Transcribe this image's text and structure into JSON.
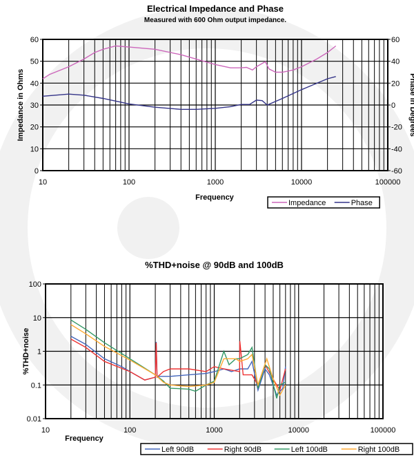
{
  "chart_data": [
    {
      "type": "line",
      "title": "Electrical Impedance and Phase",
      "subtitle": "Measured with 600 Ohm output impedance.",
      "xlabel": "Frequency",
      "ylabel": "Impedance in Ohms",
      "y2label": "Phase in Degrees",
      "xscale": "log",
      "xlim": [
        10,
        100000
      ],
      "ylim": [
        0,
        60
      ],
      "y2lim": [
        -60,
        60
      ],
      "xticks": [
        "10",
        "100",
        "1000",
        "10000",
        "100000"
      ],
      "yticks": [
        "0",
        "10",
        "20",
        "30",
        "40",
        "50",
        "60"
      ],
      "y2ticks": [
        "-60",
        "-40",
        "-20",
        "0",
        "20",
        "40",
        "60"
      ],
      "grid": true,
      "legend": "bottom-right",
      "series": [
        {
          "name": "Impedance",
          "axis": "left",
          "color": "#cc66bb",
          "x": [
            10,
            12,
            20,
            30,
            40,
            50,
            70,
            100,
            200,
            400,
            1000,
            1500,
            2000,
            2300,
            2700,
            3000,
            3800,
            4200,
            5000,
            6000,
            8000,
            10000,
            15000,
            20000,
            25000
          ],
          "y": [
            42,
            44,
            47.5,
            51,
            54,
            55.5,
            57,
            56.5,
            55.5,
            53,
            48.5,
            47,
            47,
            47.2,
            46,
            47.5,
            49.8,
            46.5,
            45,
            45,
            46,
            47.5,
            51,
            54,
            57
          ]
        },
        {
          "name": "Phase",
          "axis": "right",
          "color": "#333388",
          "x": [
            10,
            20,
            30,
            50,
            100,
            200,
            400,
            600,
            1000,
            1500,
            2000,
            2500,
            3000,
            3500,
            4000,
            6000,
            10000,
            20000,
            25000
          ],
          "y": [
            8,
            10,
            9,
            6,
            1,
            -2,
            -4,
            -4,
            -3,
            -1.5,
            0.5,
            0.5,
            4.5,
            4,
            0,
            6,
            14,
            24,
            26
          ]
        }
      ]
    },
    {
      "type": "line",
      "title": "%THD+noise @ 90dB and 100dB",
      "xlabel": "Frequency",
      "ylabel": "%THD+noise",
      "xscale": "log",
      "yscale": "log",
      "xlim": [
        10,
        100000
      ],
      "ylim": [
        0.01,
        100
      ],
      "xticks": [
        "10",
        "100",
        "1000",
        "10000",
        "100000"
      ],
      "yticks": [
        "0.01",
        "0.1",
        "1",
        "10",
        "100"
      ],
      "grid": true,
      "legend": "bottom-right",
      "series": [
        {
          "name": "Left 90dB",
          "color": "#4466bb",
          "x": [
            20,
            30,
            50,
            80,
            100,
            150,
            200,
            205,
            210,
            250,
            300,
            500,
            800,
            1000,
            1300,
            1600,
            2000,
            2500,
            2800,
            3300,
            4000,
            4500,
            5500,
            6500,
            7000
          ],
          "y": [
            2.8,
            1.6,
            0.6,
            0.35,
            0.25,
            0.14,
            0.17,
            1.9,
            0.18,
            0.18,
            0.18,
            0.2,
            0.22,
            0.25,
            0.3,
            0.25,
            0.3,
            0.3,
            0.5,
            0.07,
            0.3,
            0.2,
            0.05,
            0.08,
            0.35
          ]
        },
        {
          "name": "Right 90dB",
          "color": "#ee3333",
          "x": [
            20,
            30,
            50,
            100,
            150,
            200,
            205,
            210,
            250,
            300,
            500,
            800,
            1000,
            1300,
            2000,
            2010,
            2200,
            2800,
            3300,
            4000,
            5000,
            6000,
            7000
          ],
          "y": [
            2.3,
            1.3,
            0.5,
            0.25,
            0.14,
            0.17,
            1.8,
            0.17,
            0.25,
            0.3,
            0.3,
            0.25,
            0.35,
            0.3,
            0.25,
            2.0,
            0.2,
            0.2,
            0.1,
            0.4,
            0.15,
            0.07,
            0.3
          ]
        },
        {
          "name": "Left 100dB",
          "color": "#339966",
          "x": [
            20,
            30,
            50,
            100,
            200,
            250,
            300,
            500,
            600,
            800,
            1000,
            1300,
            1500,
            1800,
            2000,
            2500,
            2800,
            3300,
            4000,
            4500,
            5500,
            6000,
            7000
          ],
          "y": [
            8.5,
            4.5,
            1.8,
            0.6,
            0.2,
            0.13,
            0.08,
            0.075,
            0.065,
            0.1,
            0.13,
            1.0,
            0.4,
            0.6,
            0.6,
            0.8,
            1.3,
            0.08,
            0.4,
            0.3,
            0.04,
            0.1,
            0.12
          ]
        },
        {
          "name": "Right 100dB",
          "color": "#ffaa33",
          "x": [
            20,
            30,
            50,
            100,
            200,
            250,
            300,
            500,
            800,
            1000,
            1300,
            1800,
            2000,
            2500,
            2800,
            3300,
            4200,
            5000,
            6000,
            7000
          ],
          "y": [
            6.2,
            3.3,
            1.4,
            0.55,
            0.2,
            0.12,
            0.1,
            0.09,
            0.1,
            0.12,
            0.6,
            0.6,
            0.5,
            0.6,
            0.8,
            0.1,
            0.6,
            0.15,
            0.05,
            0.1
          ]
        }
      ]
    }
  ]
}
